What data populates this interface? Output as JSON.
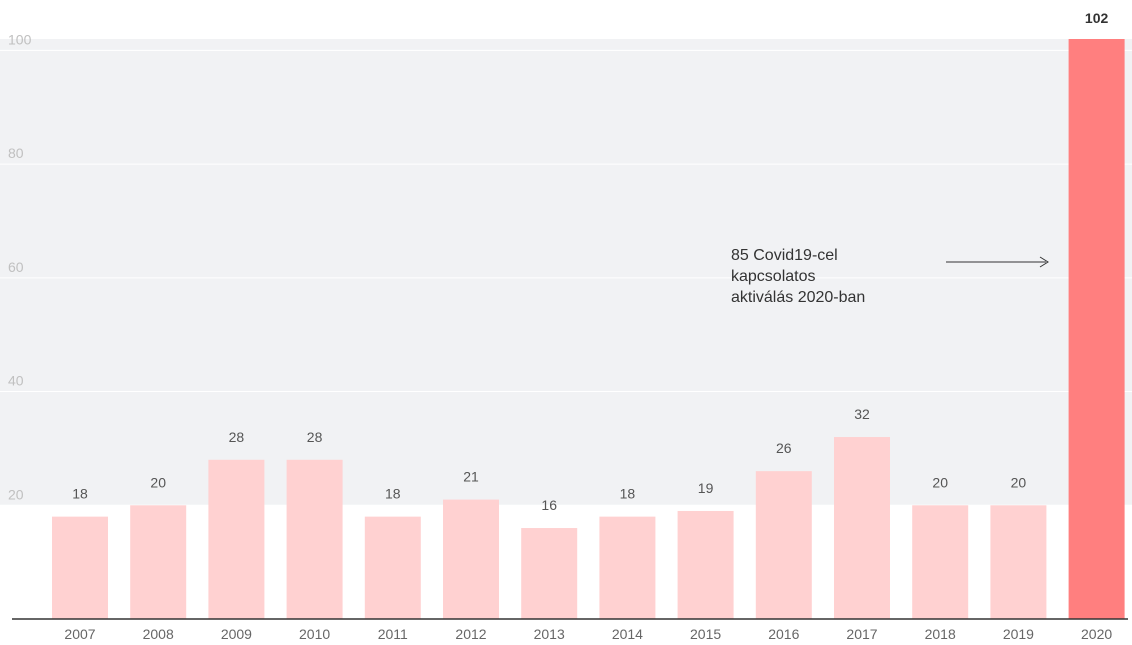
{
  "colors": {
    "panel_bg": "#f1f2f4",
    "gridline": "#ffffff",
    "bar": "#ffd1d1",
    "bar_highlight": "#ff7f7f",
    "baseline": "#333333"
  },
  "chart_data": {
    "type": "bar",
    "categories": [
      "2007",
      "2008",
      "2009",
      "2010",
      "2011",
      "2012",
      "2013",
      "2014",
      "2015",
      "2016",
      "2017",
      "2018",
      "2019",
      "2020"
    ],
    "values": [
      18,
      20,
      28,
      28,
      18,
      21,
      16,
      18,
      19,
      26,
      32,
      20,
      20,
      102
    ],
    "highlight_index": 13,
    "y_ticks": [
      20,
      40,
      60,
      80,
      100
    ],
    "ylim": [
      0,
      102
    ],
    "grid": true,
    "annotation": {
      "lines": [
        "85 Covid19-cel",
        "kapcsolatos",
        "aktiválás 2020-ban"
      ],
      "points_to": "2020"
    }
  }
}
